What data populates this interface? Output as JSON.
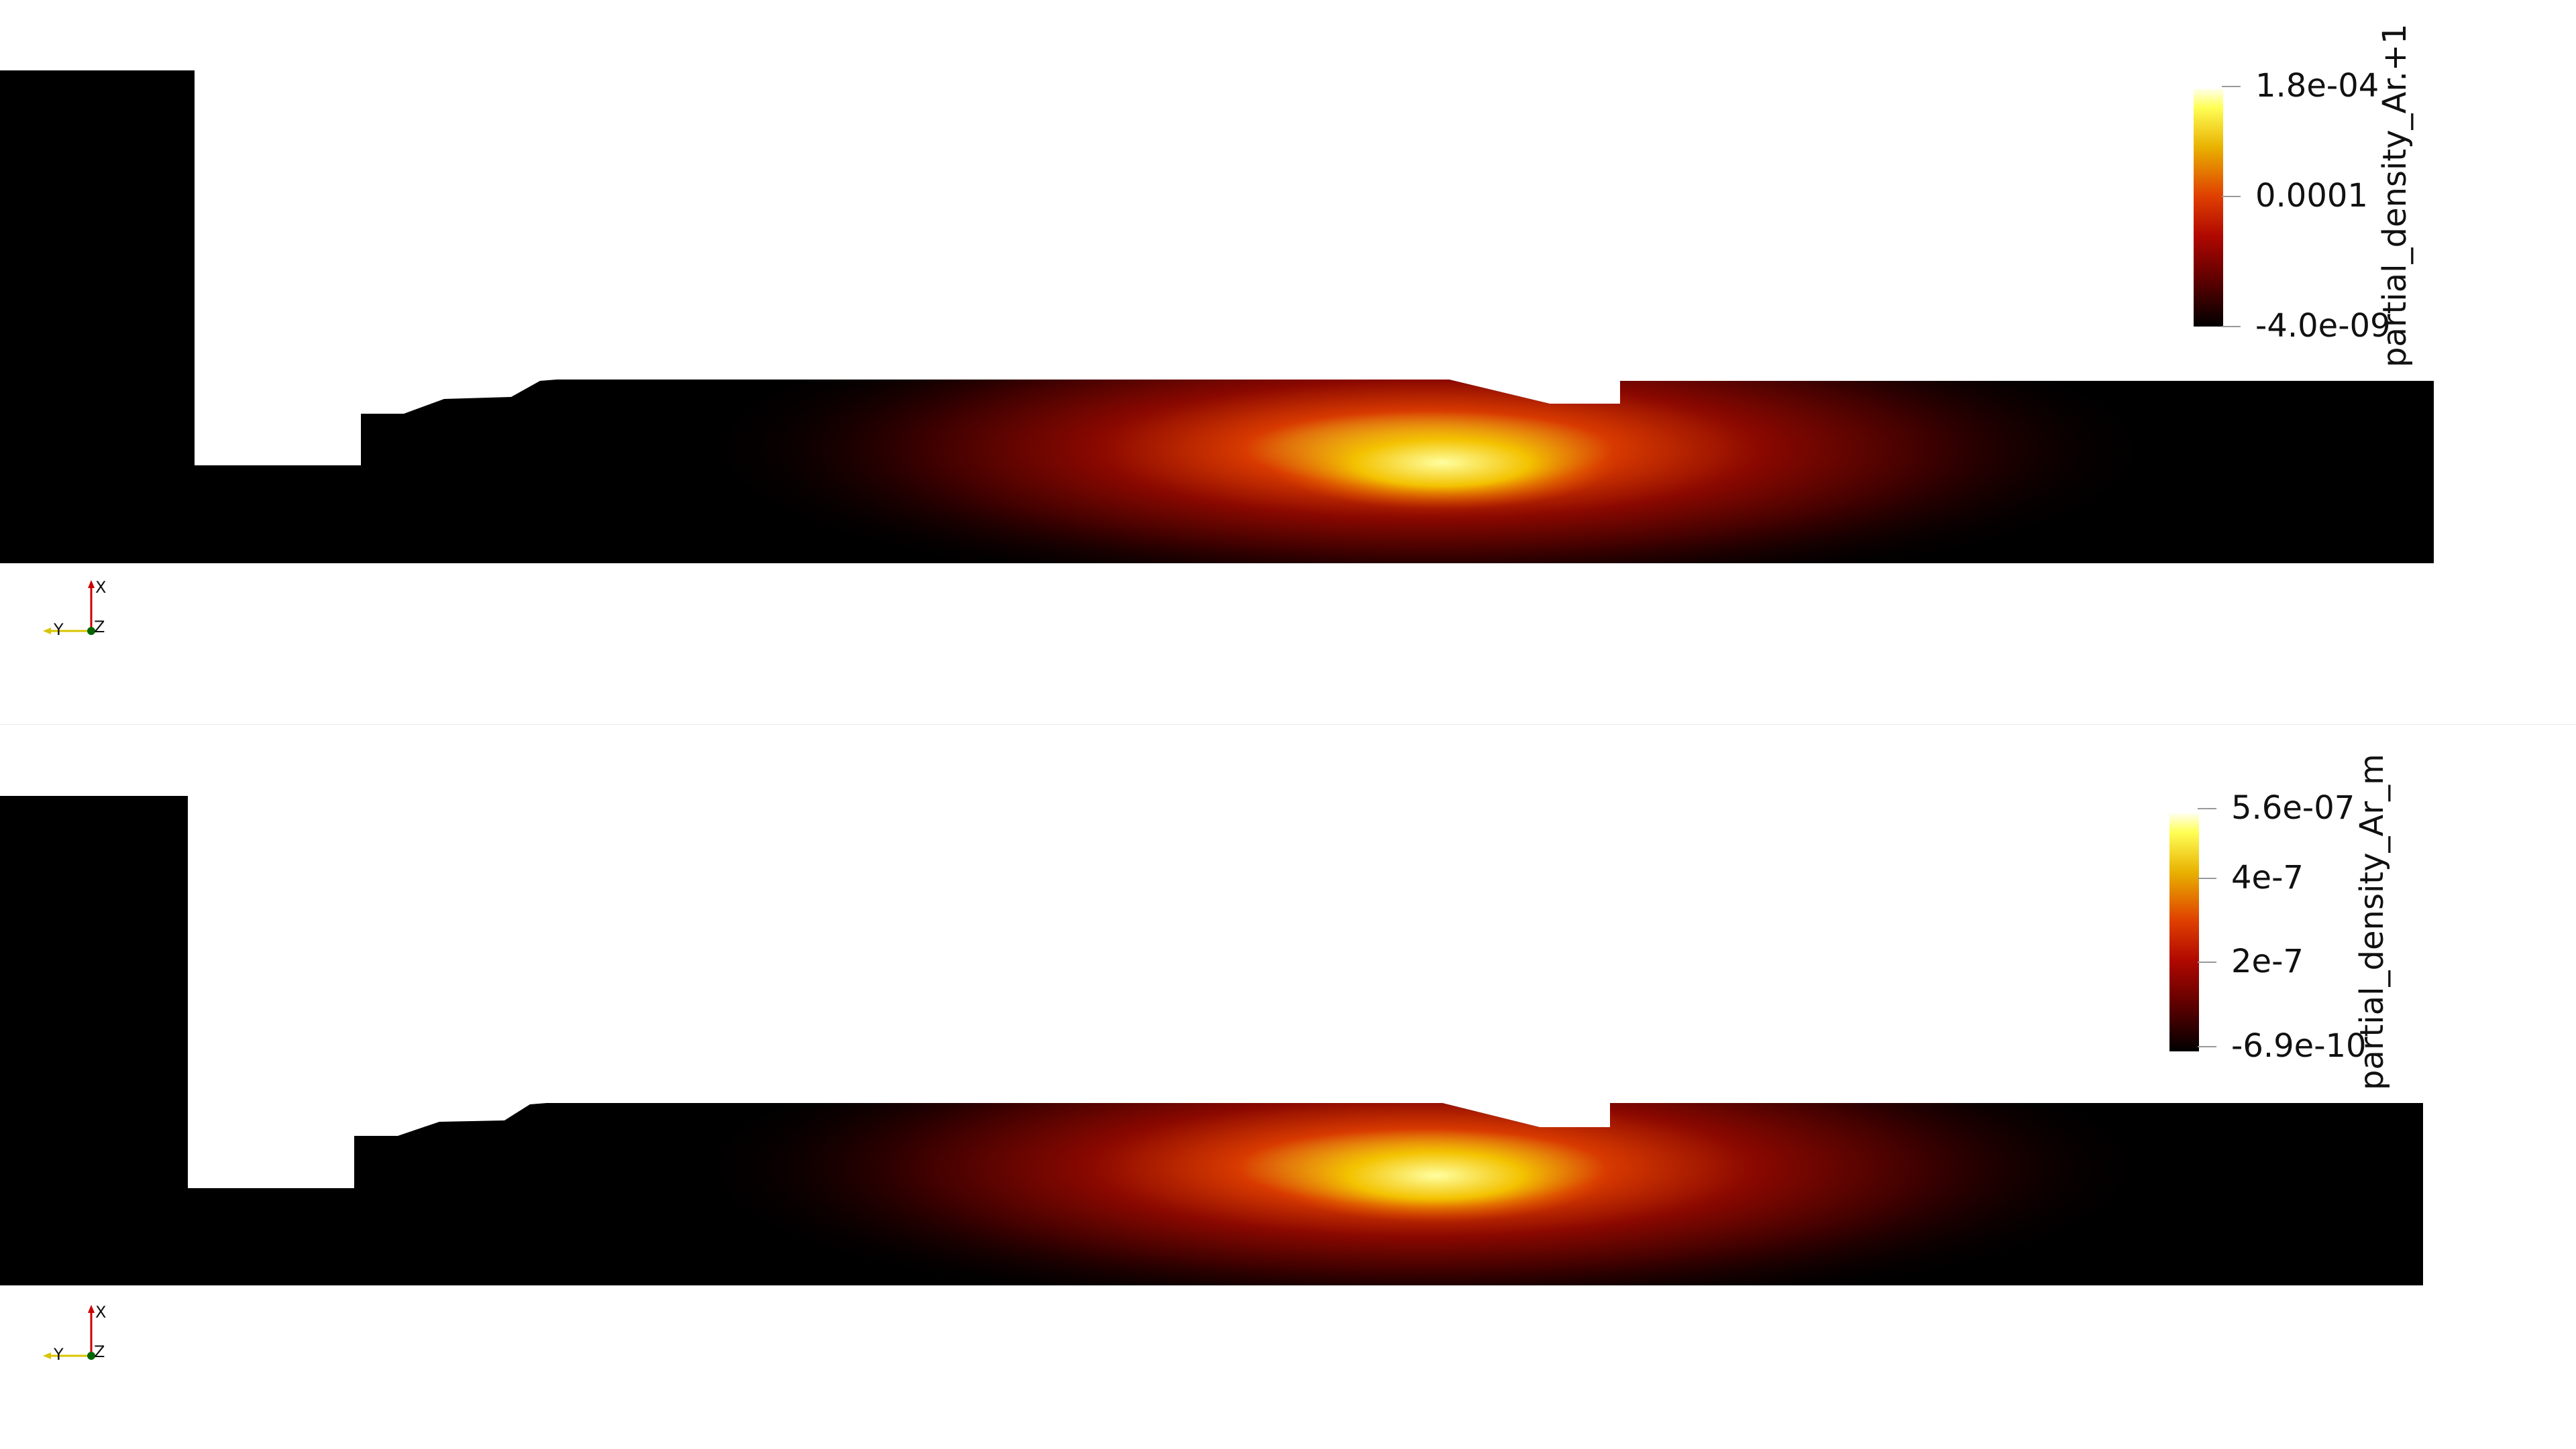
{
  "views": [
    {
      "id": "top",
      "colorbar": {
        "title": "partial_density_Ar.+1",
        "ticks": [
          "1.8e-04",
          "0.0001",
          "-4.0e-09"
        ]
      },
      "axes": {
        "x": "X",
        "y": "Y",
        "z": "Z"
      }
    },
    {
      "id": "bottom",
      "colorbar": {
        "title": "partial_density_Ar_m",
        "ticks": [
          "5.6e-07",
          "4e-7",
          "2e-7",
          "-6.9e-10"
        ]
      },
      "axes": {
        "x": "X",
        "y": "Y",
        "z": "Z"
      }
    }
  ],
  "colormap": {
    "low": "#000000",
    "mid": "#b01000",
    "high_mid": "#e05a00",
    "high": "#ffff66"
  }
}
